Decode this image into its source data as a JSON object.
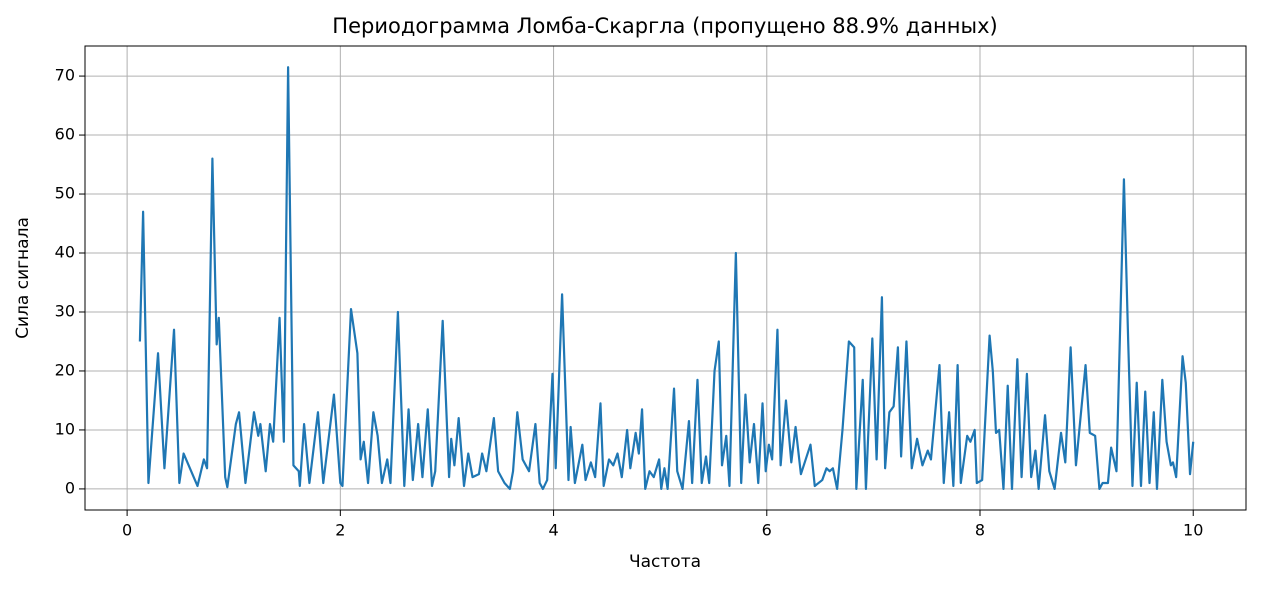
{
  "chart_data": {
    "type": "line",
    "title": "Периодограмма Ломба-Скаргла (пропущено 88.9% данных)",
    "x_label": "Частота",
    "y_label": "Сила сигнала",
    "color": "#1f77b4",
    "grid": true,
    "xlim": [
      -0.395,
      10.495
    ],
    "ylim": [
      -3.575,
      75.1
    ],
    "xticks": [
      0,
      2,
      4,
      6,
      8,
      10
    ],
    "yticks": [
      0,
      10,
      20,
      30,
      40,
      50,
      60,
      70
    ],
    "x": [
      0.12,
      0.15,
      0.2,
      0.29,
      0.35,
      0.44,
      0.49,
      0.53,
      0.66,
      0.72,
      0.75,
      0.8,
      0.84,
      0.86,
      0.92,
      0.94,
      1.02,
      1.05,
      1.11,
      1.19,
      1.23,
      1.25,
      1.3,
      1.34,
      1.37,
      1.43,
      1.47,
      1.51,
      1.56,
      1.61,
      1.62,
      1.66,
      1.71,
      1.79,
      1.84,
      1.94,
      2.0,
      2.02,
      2.1,
      2.16,
      2.19,
      2.22,
      2.26,
      2.31,
      2.35,
      2.39,
      2.44,
      2.47,
      2.54,
      2.6,
      2.64,
      2.68,
      2.73,
      2.77,
      2.82,
      2.86,
      2.89,
      2.96,
      3.02,
      3.04,
      3.07,
      3.11,
      3.16,
      3.2,
      3.24,
      3.3,
      3.33,
      3.37,
      3.44,
      3.48,
      3.54,
      3.59,
      3.62,
      3.66,
      3.71,
      3.77,
      3.83,
      3.87,
      3.9,
      3.94,
      3.99,
      4.02,
      4.08,
      4.14,
      4.16,
      4.2,
      4.27,
      4.3,
      4.35,
      4.39,
      4.44,
      4.47,
      4.52,
      4.56,
      4.6,
      4.64,
      4.69,
      4.72,
      4.77,
      4.8,
      4.83,
      4.86,
      4.9,
      4.94,
      4.99,
      5.01,
      5.04,
      5.07,
      5.13,
      5.16,
      5.21,
      5.27,
      5.3,
      5.35,
      5.39,
      5.43,
      5.46,
      5.51,
      5.55,
      5.58,
      5.62,
      5.65,
      5.71,
      5.76,
      5.8,
      5.84,
      5.88,
      5.92,
      5.96,
      5.99,
      6.02,
      6.05,
      6.1,
      6.13,
      6.18,
      6.23,
      6.27,
      6.32,
      6.41,
      6.45,
      6.52,
      6.56,
      6.59,
      6.62,
      6.66,
      6.71,
      6.77,
      6.82,
      6.84,
      6.9,
      6.93,
      6.99,
      7.03,
      7.08,
      7.11,
      7.15,
      7.19,
      7.23,
      7.26,
      7.31,
      7.36,
      7.41,
      7.46,
      7.51,
      7.54,
      7.62,
      7.66,
      7.71,
      7.75,
      7.79,
      7.82,
      7.88,
      7.91,
      7.95,
      7.97,
      8.02,
      8.09,
      8.12,
      8.15,
      8.18,
      8.22,
      8.26,
      8.3,
      8.35,
      8.39,
      8.44,
      8.48,
      8.52,
      8.55,
      8.61,
      8.65,
      8.7,
      8.76,
      8.8,
      8.85,
      8.9,
      8.99,
      9.03,
      9.08,
      9.12,
      9.15,
      9.2,
      9.23,
      9.28,
      9.35,
      9.39,
      9.43,
      9.47,
      9.51,
      9.55,
      9.59,
      9.63,
      9.66,
      9.71,
      9.75,
      9.79,
      9.81,
      9.84,
      9.9,
      9.93,
      9.97,
      10.0
    ],
    "values": [
      25,
      47,
      1,
      23,
      3.5,
      27,
      1,
      6,
      0.5,
      5,
      3.5,
      56,
      24.5,
      29,
      2,
      0.3,
      11,
      13,
      1,
      13,
      9,
      11,
      3,
      11,
      8,
      29,
      8,
      71.5,
      4,
      3,
      0.5,
      11,
      1,
      13,
      1,
      16,
      1,
      0.5,
      30.5,
      23,
      5,
      8,
      1,
      13,
      9,
      1,
      5,
      1,
      30,
      0.5,
      13.5,
      1.5,
      11,
      2,
      13.5,
      0.5,
      3,
      28.5,
      2,
      8.5,
      4,
      12,
      0.5,
      6,
      2,
      2.5,
      6,
      3,
      12,
      3,
      1,
      0,
      3,
      13,
      5,
      3,
      11,
      1,
      0,
      1.5,
      19.5,
      3.5,
      33,
      1.5,
      10.5,
      1,
      7.5,
      1.5,
      4.5,
      2,
      14.5,
      0.5,
      5,
      4,
      6,
      2,
      10,
      3.5,
      9.5,
      6,
      13.5,
      0,
      3,
      2,
      5,
      0,
      3.5,
      0,
      17,
      3,
      0,
      11.5,
      1,
      18.5,
      1,
      5.5,
      1,
      20,
      25,
      4,
      9,
      0.5,
      40,
      1,
      16,
      4.5,
      11,
      1,
      14.5,
      3,
      7.5,
      5,
      27,
      4,
      15,
      4.5,
      10.5,
      2.5,
      7.5,
      0.5,
      1.5,
      3.5,
      3,
      3.5,
      0,
      10,
      25,
      24,
      0,
      18.5,
      0,
      25.5,
      5,
      32.5,
      3.5,
      13,
      14,
      24,
      5.5,
      25,
      3.5,
      8.5,
      4,
      6.5,
      5,
      21,
      1,
      13,
      0.5,
      21,
      1,
      9,
      8,
      10,
      1,
      1.5,
      26,
      20,
      9.5,
      10,
      0,
      17.5,
      0,
      22,
      2,
      19.5,
      2,
      6.5,
      0,
      12.5,
      3,
      0,
      9.5,
      4.5,
      24,
      4,
      21,
      9.5,
      9,
      0,
      1,
      1,
      7,
      3,
      52.5,
      25,
      0.5,
      18,
      0.5,
      16.5,
      1,
      13,
      0,
      18.5,
      8,
      4,
      4.5,
      2,
      22.5,
      18,
      2.5,
      8
    ]
  }
}
